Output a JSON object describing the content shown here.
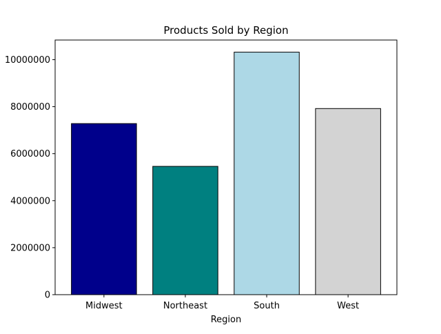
{
  "chart_data": {
    "type": "bar",
    "title": "Products Sold by Region",
    "xlabel": "Region",
    "ylabel": "",
    "categories": [
      "Midwest",
      "Northeast",
      "South",
      "West"
    ],
    "values": [
      7280000,
      5460000,
      10320000,
      7920000
    ],
    "bar_colors": [
      "#00008b",
      "#008080",
      "#add8e6",
      "#d3d3d3"
    ],
    "bar_edge_color": "#000000",
    "ylim": [
      0,
      10836000
    ],
    "yticks": [
      0,
      2000000,
      4000000,
      6000000,
      8000000,
      10000000
    ],
    "ytick_labels": [
      "0",
      "2000000",
      "4000000",
      "6000000",
      "8000000",
      "10000000"
    ],
    "grid": false,
    "legend": "none"
  }
}
